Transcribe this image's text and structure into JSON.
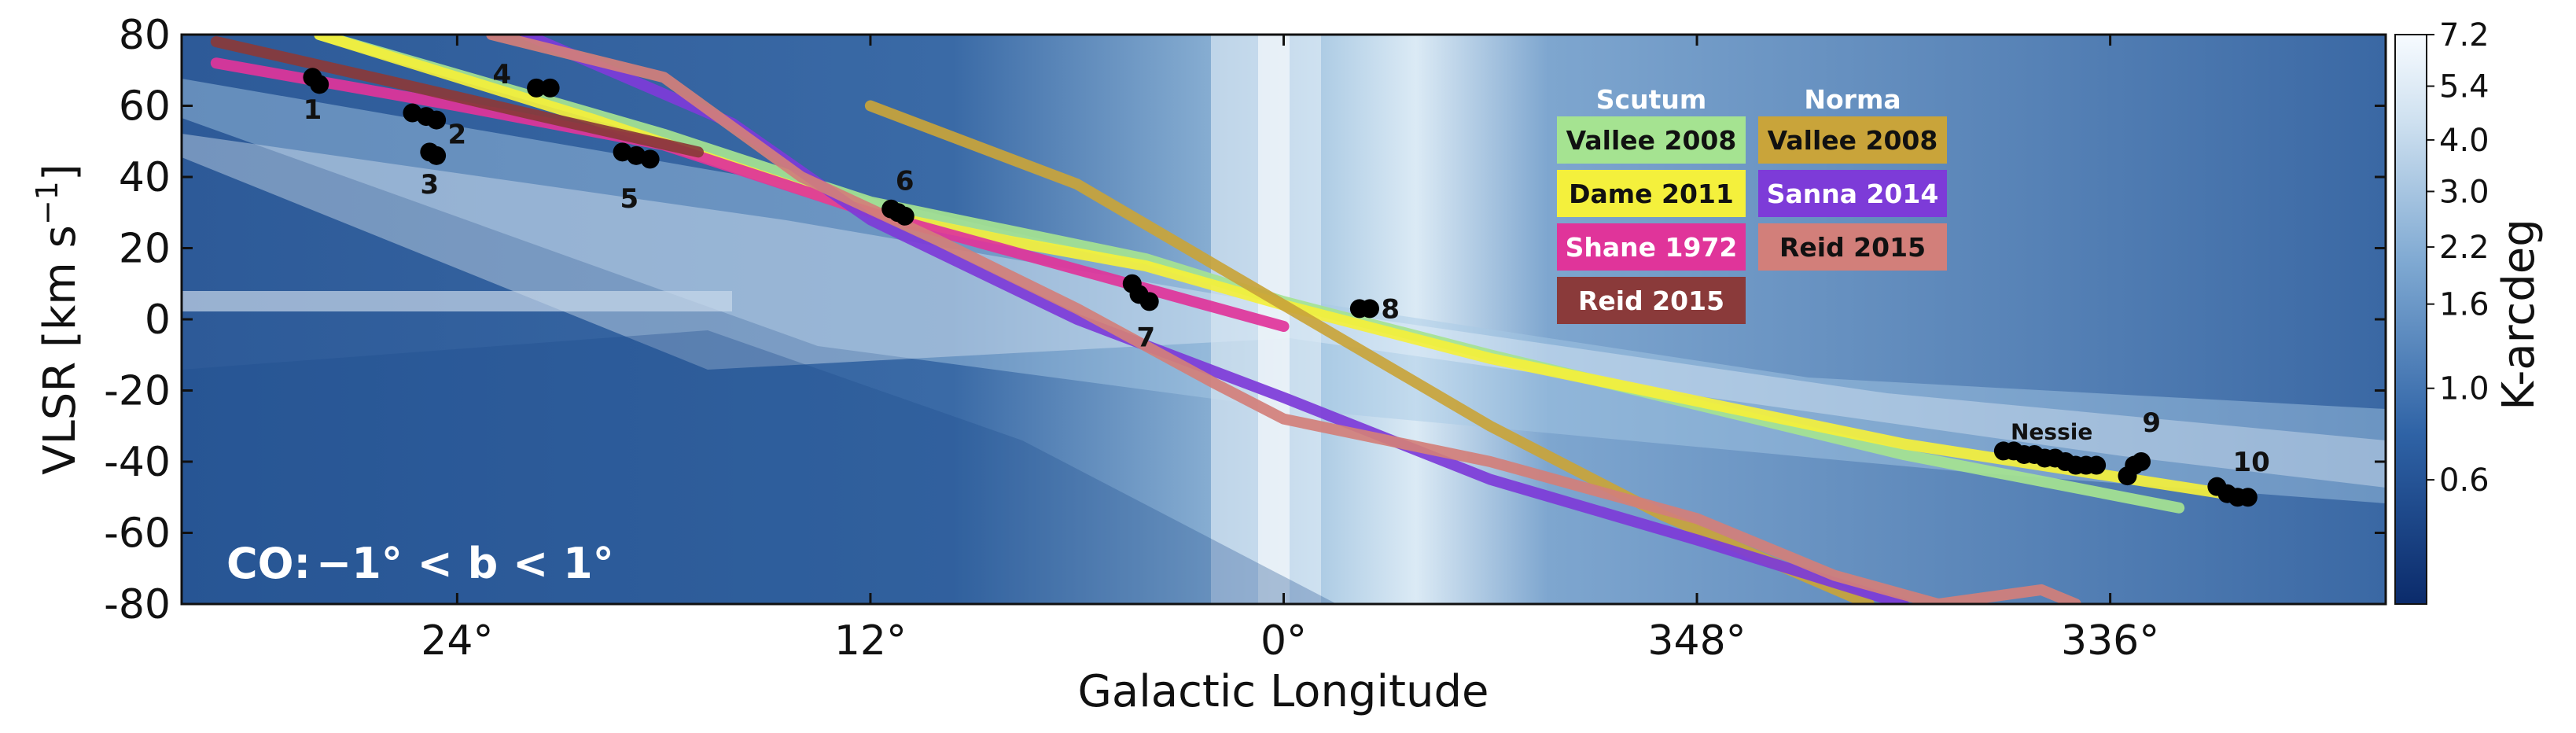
{
  "chart_data": {
    "type": "line",
    "title": "",
    "xlabel": "Galactic Longitude",
    "ylabel": "VLSR [km s$^{-1}$]",
    "ylabel_text": "VLSR [km s",
    "ylabel_sup": "−1",
    "ylabel_end": "]",
    "x_reversed": true,
    "xlim": [
      32,
      328
    ],
    "ylim": [
      -80,
      80
    ],
    "x_ticks": [
      {
        "value": 24,
        "label": "24°"
      },
      {
        "value": 12,
        "label": "12°"
      },
      {
        "value": 0,
        "label": "0°"
      },
      {
        "value": 348,
        "label": "348°"
      },
      {
        "value": 336,
        "label": "336°"
      }
    ],
    "y_ticks": [
      80,
      60,
      40,
      20,
      0,
      -20,
      -40,
      -60,
      -80
    ],
    "background": "CO longitude-velocity map (blue-white colormap)",
    "inset_label": {
      "prefix": "CO:",
      "text": "−1° < b < 1°"
    },
    "colorbar": {
      "label": "K-arcdeg",
      "ticks": [
        "7.2",
        "5.4",
        "4.0",
        "3.0",
        "2.2",
        "1.6",
        "1.0",
        "0.6"
      ],
      "tick_values": [
        7.2,
        5.4,
        4.0,
        3.0,
        2.2,
        1.6,
        1.0,
        0.6
      ],
      "scale": "log"
    },
    "legend": {
      "groups": [
        {
          "title": "Scutum",
          "entries": [
            {
              "name": "Vallee 2008",
              "color": "#a5e391",
              "text_color": "#111111"
            },
            {
              "name": "Dame 2011",
              "color": "#f4f03c",
              "text_color": "#111111"
            },
            {
              "name": "Shane 1972",
              "color": "#e0349a",
              "text_color": "#ffffff"
            },
            {
              "name": "Reid 2015",
              "color": "#8a3a3a",
              "text_color": "#ffffff"
            }
          ]
        },
        {
          "title": "Norma",
          "entries": [
            {
              "name": "Vallee 2008",
              "color": "#c9a43a",
              "text_color": "#111111"
            },
            {
              "name": "Sanna 2014",
              "color": "#7d3bd8",
              "text_color": "#ffffff"
            },
            {
              "name": "Reid 2015",
              "color": "#d27f7a",
              "text_color": "#111111"
            }
          ]
        }
      ]
    },
    "series": [
      {
        "name": "Scutum Vallee 2008",
        "color": "#a5e391",
        "points": [
          [
            28,
            80
          ],
          [
            18,
            52
          ],
          [
            12,
            33
          ],
          [
            4,
            17
          ],
          [
            0,
            5
          ],
          [
            354,
            -10
          ],
          [
            342,
            -38
          ],
          [
            334,
            -53
          ]
        ]
      },
      {
        "name": "Scutum Dame 2011",
        "color": "#f4f03c",
        "points": [
          [
            28,
            80
          ],
          [
            20,
            56
          ],
          [
            12,
            30
          ],
          [
            8,
            22
          ],
          [
            4,
            15
          ],
          [
            0,
            4
          ],
          [
            354,
            -11
          ],
          [
            342,
            -35
          ],
          [
            332,
            -50
          ]
        ]
      },
      {
        "name": "Scutum Shane 1972",
        "color": "#e0349a",
        "points": [
          [
            31,
            72
          ],
          [
            24,
            60
          ],
          [
            18,
            49
          ],
          [
            12,
            30
          ],
          [
            6,
            14
          ],
          [
            3,
            6
          ],
          [
            0,
            -2
          ]
        ]
      },
      {
        "name": "Scutum Reid 2015",
        "color": "#8a3a3a",
        "points": [
          [
            31,
            78
          ],
          [
            26,
            67
          ],
          [
            22,
            58
          ],
          [
            17,
            47
          ]
        ]
      },
      {
        "name": "Norma Vallee 2008",
        "color": "#c9a43a",
        "points": [
          [
            12,
            60
          ],
          [
            6,
            38
          ],
          [
            0,
            4
          ],
          [
            354,
            -30
          ],
          [
            349,
            -55
          ],
          [
            343,
            -80
          ]
        ]
      },
      {
        "name": "Norma Sanna 2014",
        "color": "#7d3bd8",
        "points": [
          [
            22,
            80
          ],
          [
            16,
            55
          ],
          [
            12,
            28
          ],
          [
            6,
            0
          ],
          [
            0,
            -22
          ],
          [
            354,
            -45
          ],
          [
            348,
            -62
          ],
          [
            342,
            -80
          ]
        ]
      },
      {
        "name": "Norma Reid 2015",
        "color": "#d27f7a",
        "points": [
          [
            23,
            80
          ],
          [
            18,
            68
          ],
          [
            14,
            40
          ],
          [
            10,
            22
          ],
          [
            6,
            3
          ],
          [
            2,
            -18
          ],
          [
            0,
            -28
          ],
          [
            354,
            -40
          ],
          [
            348,
            -56
          ],
          [
            344,
            -72
          ],
          [
            341,
            -80
          ],
          [
            338,
            -76
          ],
          [
            337,
            -80
          ]
        ]
      }
    ],
    "clouds": [
      {
        "label": "1",
        "label_color": "#111111",
        "points": [
          [
            28.2,
            68
          ],
          [
            28.0,
            66
          ]
        ],
        "label_pos": [
          28.2,
          59
        ]
      },
      {
        "label": "2",
        "label_color": "#111111",
        "points": [
          [
            25.3,
            58
          ],
          [
            24.9,
            57
          ],
          [
            24.6,
            56
          ]
        ],
        "label_pos": [
          24.0,
          52
        ]
      },
      {
        "label": "3",
        "label_color": "#111111",
        "points": [
          [
            24.8,
            47
          ],
          [
            24.6,
            46
          ]
        ],
        "label_pos": [
          24.8,
          38
        ]
      },
      {
        "label": "4",
        "label_color": "#111111",
        "points": [
          [
            21.7,
            65
          ],
          [
            21.3,
            65
          ]
        ],
        "label_pos": [
          22.7,
          69
        ]
      },
      {
        "label": "5",
        "label_color": "#111111",
        "points": [
          [
            19.2,
            47
          ],
          [
            18.8,
            46
          ],
          [
            18.4,
            45
          ]
        ],
        "label_pos": [
          19.0,
          34
        ]
      },
      {
        "label": "6",
        "label_color": "#777777",
        "points": [
          [
            11.4,
            31
          ],
          [
            11.2,
            30
          ],
          [
            11.0,
            29
          ]
        ],
        "label_pos": [
          11.0,
          39
        ]
      },
      {
        "label": "7",
        "label_color": "#111111",
        "points": [
          [
            4.4,
            10
          ],
          [
            4.2,
            7
          ],
          [
            3.9,
            5
          ]
        ],
        "label_pos": [
          4.0,
          -5
        ]
      },
      {
        "label": "8",
        "label_color": "#777777",
        "points": [
          [
            357.8,
            3
          ],
          [
            357.5,
            3
          ]
        ],
        "label_pos": [
          356.9,
          3
        ]
      },
      {
        "label": "Nessie",
        "label_color": "#111111",
        "points": [
          [
            339.1,
            -37
          ],
          [
            338.8,
            -37
          ],
          [
            338.5,
            -38
          ],
          [
            338.2,
            -38
          ],
          [
            337.9,
            -39
          ],
          [
            337.6,
            -39
          ],
          [
            337.3,
            -40
          ],
          [
            337.0,
            -41
          ],
          [
            336.7,
            -41
          ],
          [
            336.4,
            -41
          ]
        ],
        "label_pos": [
          337.7,
          -31
        ]
      },
      {
        "label": "9",
        "label_color": "#111111",
        "points": [
          [
            335.5,
            -44
          ],
          [
            335.3,
            -41
          ],
          [
            335.1,
            -40
          ]
        ],
        "label_pos": [
          334.8,
          -29
        ]
      },
      {
        "label": "10",
        "label_color": "#111111",
        "points": [
          [
            332.9,
            -47
          ],
          [
            332.6,
            -49
          ],
          [
            332.3,
            -50
          ],
          [
            332.0,
            -50
          ]
        ],
        "label_pos": [
          331.9,
          -40
        ]
      }
    ]
  }
}
